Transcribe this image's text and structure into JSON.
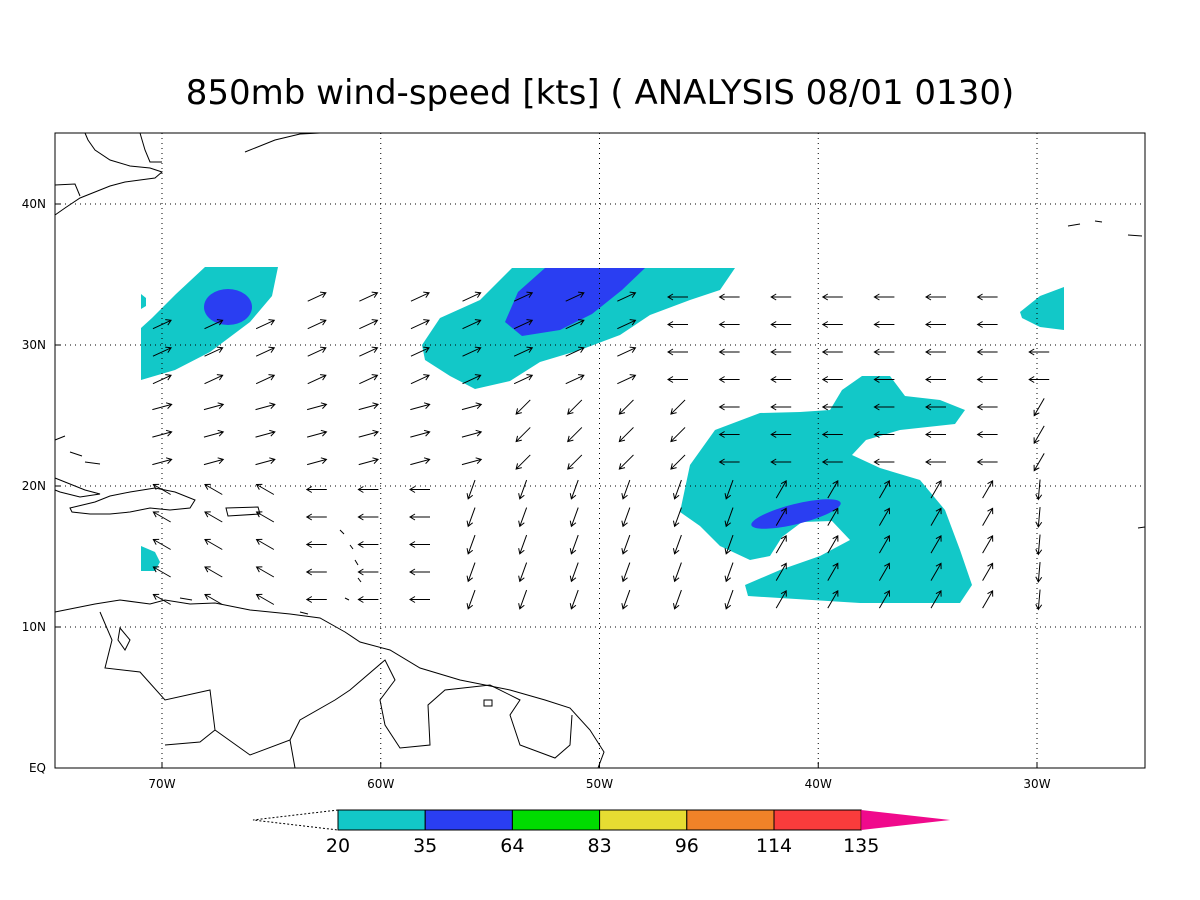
{
  "header": {
    "title": "850mb wind-speed [kts] ( ANALYSIS 08/01 0130)"
  },
  "map": {
    "x_labels": [
      "70W",
      "60W",
      "50W",
      "40W",
      "30W"
    ],
    "y_labels": [
      "EQ",
      "10N",
      "20N",
      "30N",
      "40N"
    ]
  },
  "colorbar": {
    "levels": [
      20,
      35,
      64,
      83,
      96,
      114,
      135
    ],
    "colors": [
      "#12c8c8",
      "#2a3ef2",
      "#00dc00",
      "#e6dc32",
      "#f08228",
      "#fa3c3c",
      "#f00a8c"
    ]
  }
}
